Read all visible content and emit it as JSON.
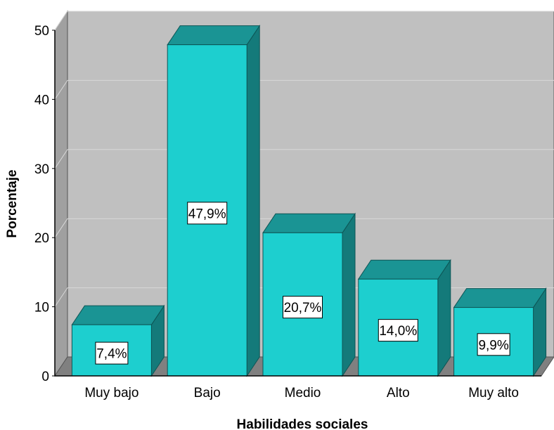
{
  "chart_data": {
    "type": "bar",
    "xlabel": "Habilidades sociales",
    "ylabel": "Porcentaje",
    "categories": [
      "Muy bajo",
      "Bajo",
      "Medio",
      "Alto",
      "Muy alto"
    ],
    "values": [
      7.4,
      47.9,
      20.7,
      14.0,
      9.9
    ],
    "data_labels": [
      "7,4%",
      "47,9%",
      "20,7%",
      "14,0%",
      "9,9%"
    ],
    "ylim": [
      0,
      50
    ],
    "yticks": [
      "0",
      "10",
      "20",
      "30",
      "40",
      "50"
    ],
    "grid": true,
    "legend": "none",
    "colors": {
      "bar_front": "#1dcfcf",
      "bar_top": "#1a9494",
      "bar_side": "#147a7a",
      "wall": "#c0c0c0",
      "floor": "#808080",
      "grid": "#d8d8d8",
      "axis": "#000000"
    }
  }
}
